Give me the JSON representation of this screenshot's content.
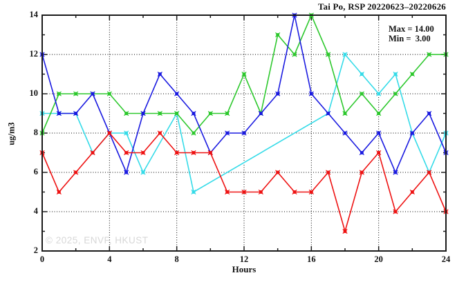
{
  "title": "Tai Po, RSP 20220623–20220626",
  "watermark": "© 2025, ENVF, HKUST",
  "chart_data": {
    "type": "line",
    "title": "Tai Po, RSP 20220623–20220626",
    "xlabel": "Hours",
    "ylabel": "ug/m3",
    "xlim": [
      0,
      24
    ],
    "ylim": [
      2,
      14
    ],
    "x_major_ticks": [
      0,
      4,
      8,
      12,
      16,
      20,
      24
    ],
    "x_minor_step": 2,
    "y_major_ticks": [
      2,
      4,
      6,
      8,
      10,
      12,
      14
    ],
    "y_minor_step": 1,
    "grid": "dotted-at-major-ticks",
    "legend_position": "none",
    "annotations": [
      "Max = 14.00",
      "Min =  3.00"
    ],
    "series": [
      {
        "name": "cyan-series",
        "color": "#35dbe8",
        "x": [
          0,
          1,
          2,
          3,
          4,
          5,
          6,
          8,
          9,
          17,
          18,
          19,
          20,
          21,
          22,
          23,
          24
        ],
        "values": [
          9,
          9,
          9,
          7,
          8,
          8,
          6,
          9,
          5,
          9,
          12,
          11,
          10,
          11,
          8,
          6,
          8
        ]
      },
      {
        "name": "green-series",
        "color": "#2dc82d",
        "x": [
          0,
          1,
          2,
          3,
          4,
          5,
          6,
          7,
          8,
          9,
          10,
          11,
          12,
          13,
          14,
          15,
          16,
          17,
          18,
          19,
          20,
          21,
          22,
          23,
          24
        ],
        "values": [
          8,
          10,
          10,
          10,
          10,
          9,
          9,
          9,
          9,
          8,
          9,
          9,
          11,
          9,
          13,
          12,
          14,
          12,
          9,
          10,
          9,
          10,
          11,
          12,
          12
        ]
      },
      {
        "name": "blue-series",
        "color": "#1a1ae0",
        "x": [
          0,
          1,
          2,
          3,
          4,
          5,
          6,
          7,
          8,
          9,
          10,
          11,
          12,
          13,
          14,
          15,
          16,
          17,
          18,
          19,
          20,
          21,
          22,
          23,
          24
        ],
        "values": [
          12,
          9,
          9,
          10,
          8,
          6,
          9,
          11,
          10,
          9,
          7,
          8,
          8,
          9,
          10,
          14,
          10,
          9,
          8,
          7,
          8,
          6,
          8,
          9,
          7
        ]
      },
      {
        "name": "red-series",
        "color": "#ee1111",
        "x": [
          0,
          1,
          2,
          3,
          4,
          5,
          6,
          7,
          8,
          9,
          10,
          11,
          12,
          13,
          14,
          15,
          16,
          17,
          18,
          19,
          20,
          21,
          22,
          23,
          24
        ],
        "values": [
          7,
          5,
          6,
          7,
          8,
          7,
          7,
          8,
          7,
          7,
          7,
          5,
          5,
          5,
          6,
          5,
          5,
          6,
          3,
          6,
          7,
          4,
          5,
          6,
          4
        ]
      }
    ]
  }
}
